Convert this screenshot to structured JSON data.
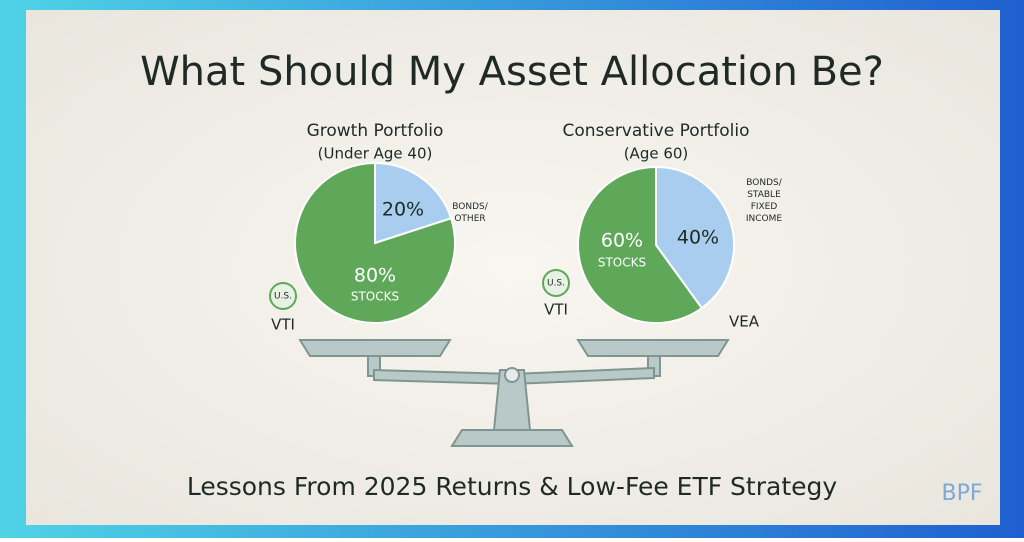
{
  "title": "What Should My Asset Allocation Be?",
  "footer": "Lessons From 2025 Returns & Low-Fee ETF Strategy",
  "logo": "BPF",
  "chart_data": [
    {
      "type": "pie",
      "title": "Growth Portfolio",
      "subtitle": "(Under Age 40)",
      "categories": [
        "BONDS/ OTHER",
        "STOCKS"
      ],
      "values": [
        20,
        80
      ],
      "value_labels": [
        "20%",
        "80%"
      ],
      "colors": [
        "#a9cdee",
        "#5fa85a"
      ],
      "annotations": [
        "U.S.",
        "VTI"
      ]
    },
    {
      "type": "pie",
      "title": "Conservative Portfolio",
      "subtitle": "(Age 60)",
      "categories": [
        "BONDS/ STABLE FIXED INCOME",
        "STOCKS"
      ],
      "values": [
        40,
        60
      ],
      "value_labels": [
        "40%",
        "60%"
      ],
      "colors": [
        "#a9cdee",
        "#5fa85a"
      ],
      "annotations": [
        "U.S.",
        "VTI",
        "VEA"
      ]
    }
  ]
}
